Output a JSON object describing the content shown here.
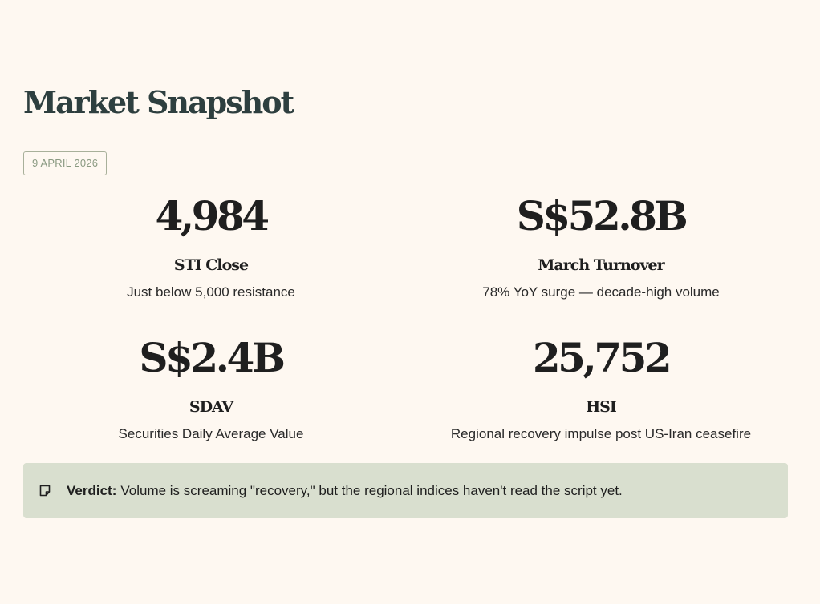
{
  "page": {
    "title": "Market Snapshot",
    "date": "9 APRIL 2026"
  },
  "metrics": [
    {
      "value": "4,984",
      "label": "STI Close",
      "desc": "Just below 5,000 resistance"
    },
    {
      "value": "S$52.8B",
      "label": "March Turnover",
      "desc": "78% YoY surge — decade-high volume"
    },
    {
      "value": "S$2.4B",
      "label": "SDAV",
      "desc": "Securities Daily Average Value"
    },
    {
      "value": "25,752",
      "label": "HSI",
      "desc": "Regional recovery impulse post US-Iran ceasefire"
    }
  ],
  "verdict": {
    "icon": "note-icon",
    "label": "Verdict:",
    "text": "Volume is screaming \"recovery,\" but the regional indices haven't read the script yet."
  },
  "colors": {
    "background": "#fef8f1",
    "title": "#2e3f3f",
    "verdict_bg": "#d9dfcf",
    "badge_border": "#a8b09a"
  }
}
